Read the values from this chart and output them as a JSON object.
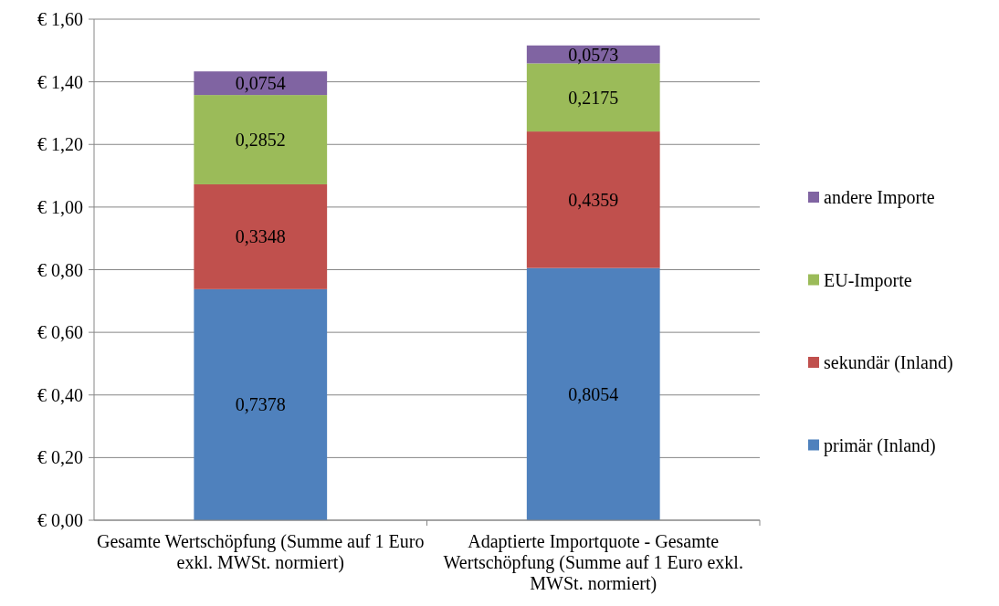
{
  "chart_data": {
    "type": "bar",
    "stacked": true,
    "categories": [
      "Gesamte Wertschöpfung (Summe auf 1 Euro exkl. MWSt. normiert)",
      "Adaptierte Importquote - Gesamte Wertschöpfung (Summe auf 1 Euro exkl. MWSt. normiert)"
    ],
    "series": [
      {
        "name": "primär (Inland)",
        "color": "#4f81bd",
        "values": [
          0.7378,
          0.8054
        ],
        "value_labels": [
          "0,7378",
          "0,8054"
        ]
      },
      {
        "name": "sekundär (Inland)",
        "color": "#c0504d",
        "values": [
          0.3348,
          0.4359
        ],
        "value_labels": [
          "0,3348",
          "0,4359"
        ]
      },
      {
        "name": "EU-Importe",
        "color": "#9bbb59",
        "values": [
          0.2852,
          0.2175
        ],
        "value_labels": [
          "0,2852",
          "0,2175"
        ]
      },
      {
        "name": "andere Importe",
        "color": "#8064a2",
        "values": [
          0.0754,
          0.0573
        ],
        "value_labels": [
          "0,0754",
          "0,0573"
        ]
      }
    ],
    "ylim": [
      0,
      1.6
    ],
    "yticks": [
      {
        "value": 0,
        "label": "€ 0,00"
      },
      {
        "value": 0.2,
        "label": "€ 0,20"
      },
      {
        "value": 0.4,
        "label": "€ 0,40"
      },
      {
        "value": 0.6,
        "label": "€ 0,60"
      },
      {
        "value": 0.8,
        "label": "€ 0,80"
      },
      {
        "value": 1,
        "label": "€ 1,00"
      },
      {
        "value": 1.2,
        "label": "€ 1,20"
      },
      {
        "value": 1.4,
        "label": "€ 1,40"
      },
      {
        "value": 1.6,
        "label": "€ 1,60"
      }
    ],
    "grid": "y",
    "legend": "right"
  }
}
